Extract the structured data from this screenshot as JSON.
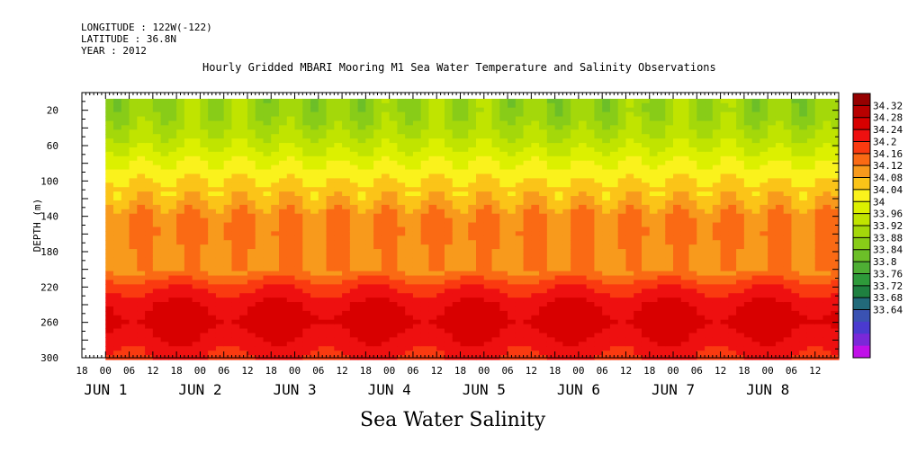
{
  "header": {
    "longitude": "LONGITUDE : 122W(-122)",
    "latitude": "LATITUDE : 36.8N",
    "year": "YEAR : 2012"
  },
  "footer_label": "Sea Water Salinity",
  "chart_data": {
    "type": "heatmap",
    "title": "Hourly Gridded MBARI Mooring M1 Sea Water Temperature and Salinity Observations",
    "xlabel": "",
    "ylabel": "DEPTH (m)",
    "ylim": [
      300,
      0
    ],
    "y_ticks": [
      20,
      60,
      100,
      140,
      180,
      220,
      260,
      300
    ],
    "x_time_range": [
      "2012-05-31 18:00",
      "2012-06-08 18:00"
    ],
    "data_start": "2012-06-01 00:00",
    "x_hour_ticks": [
      "18",
      "00",
      "06",
      "12",
      "18",
      "00",
      "06",
      "12",
      "18",
      "00",
      "06",
      "12",
      "18",
      "00",
      "06",
      "12",
      "18",
      "00",
      "06",
      "12",
      "18",
      "00",
      "06",
      "12",
      "18",
      "00",
      "06",
      "12",
      "18",
      "00",
      "06",
      "12"
    ],
    "x_day_labels": [
      "JUN 1",
      "JUN 2",
      "JUN 3",
      "JUN 4",
      "JUN 5",
      "JUN 6",
      "JUN 7",
      "JUN 8"
    ],
    "colorbar_levels": [
      "34.32",
      "34.28",
      "34.24",
      "34.2",
      "34.16",
      "34.12",
      "34.08",
      "34.04",
      "34",
      "33.96",
      "33.92",
      "33.88",
      "33.84",
      "33.8",
      "33.76",
      "33.72",
      "33.68",
      "33.64"
    ],
    "colorbar_colors": [
      "#960000",
      "#b80000",
      "#d80000",
      "#ee1010",
      "#fa3a10",
      "#fa6a14",
      "#f89a1c",
      "#fbc418",
      "#faf21c",
      "#dcf000",
      "#c0e400",
      "#a4d80a",
      "#88cc18",
      "#6cbf28",
      "#4eae34",
      "#2e9a3a",
      "#1f8040",
      "#226a7a",
      "#3a52b2",
      "#4a3ad0",
      "#7a28d8",
      "#c010e8"
    ],
    "depth_profile": [
      {
        "depth": 10,
        "salinity": 33.88
      },
      {
        "depth": 20,
        "salinity": 33.88
      },
      {
        "depth": 40,
        "salinity": 33.91
      },
      {
        "depth": 60,
        "salinity": 33.95
      },
      {
        "depth": 80,
        "salinity": 34.0
      },
      {
        "depth": 100,
        "salinity": 34.04
      },
      {
        "depth": 120,
        "salinity": 34.07
      },
      {
        "depth": 140,
        "salinity": 34.12
      },
      {
        "depth": 160,
        "salinity": 34.13
      },
      {
        "depth": 180,
        "salinity": 34.11
      },
      {
        "depth": 200,
        "salinity": 34.11
      },
      {
        "depth": 220,
        "salinity": 34.19
      },
      {
        "depth": 240,
        "salinity": 34.24
      },
      {
        "depth": 260,
        "salinity": 34.26
      },
      {
        "depth": 280,
        "salinity": 34.23
      },
      {
        "depth": 300,
        "salinity": 34.2
      }
    ]
  }
}
